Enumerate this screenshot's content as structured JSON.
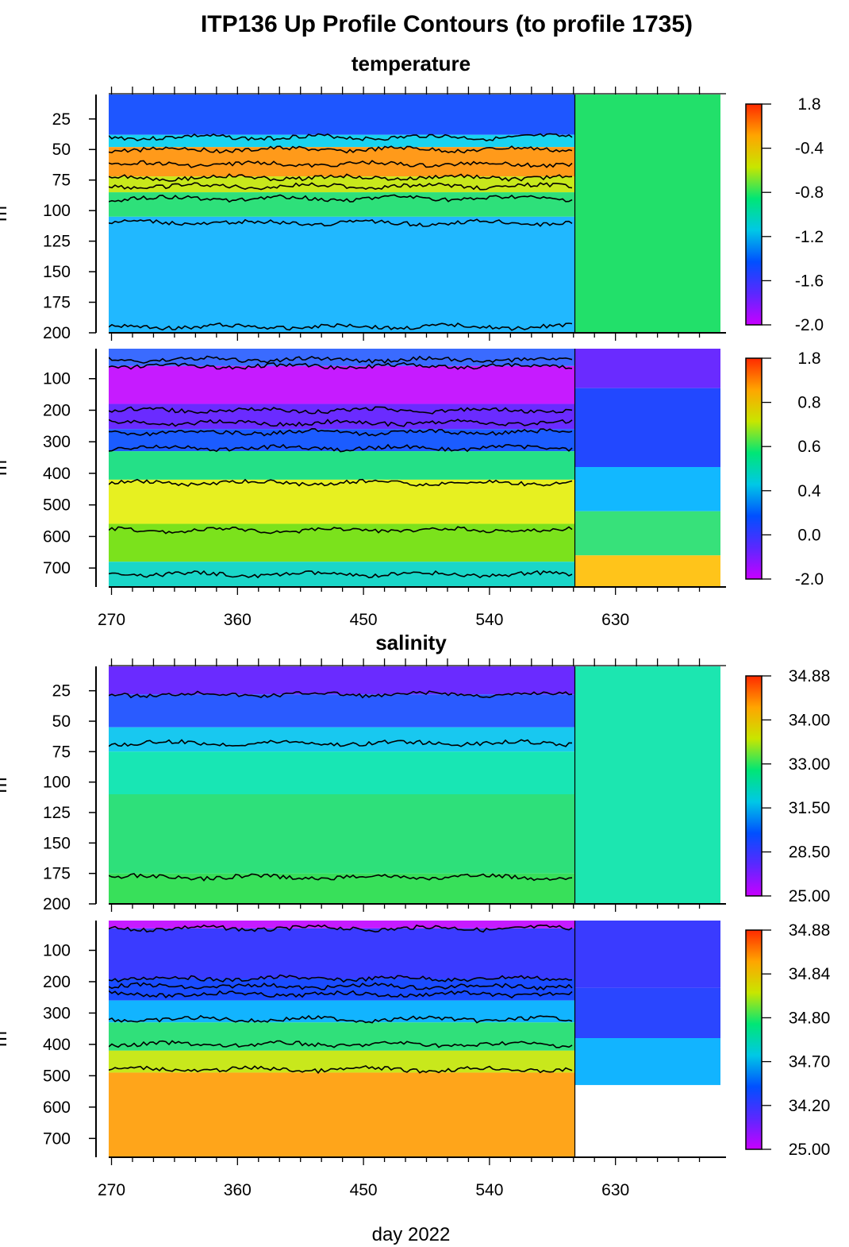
{
  "title": "ITP136 Up Profile Contours (to profile 1735)",
  "xlabel": "day 2022",
  "ylabel": "m",
  "chart_data": [
    {
      "type": "heatmap",
      "section": "temperature",
      "variable": "temperature",
      "panel": "upper",
      "x_ticks": [
        270,
        360,
        450,
        540,
        630
      ],
      "xlim": [
        268,
        705
      ],
      "y_ticks": [
        25,
        50,
        75,
        100,
        125,
        150,
        175,
        200
      ],
      "ylim": [
        200,
        5
      ],
      "ylabel": "m",
      "colorbar_labels": [
        "1.8",
        "-0.4",
        "-0.8",
        "-1.2",
        "-1.6",
        "-2.0"
      ],
      "colormap": [
        "#ff2a00",
        "#ffa500",
        "#c8e600",
        "#00e676",
        "#00c8e6",
        "#0050ff",
        "#5a28ff",
        "#c800ff"
      ],
      "data_end_day": 601,
      "layers": [
        {
          "from": 5,
          "to": 38,
          "color": "#1e56ff"
        },
        {
          "from": 38,
          "to": 48,
          "color": "#19d3f0"
        },
        {
          "from": 48,
          "to": 72,
          "color": "#ff9a1a"
        },
        {
          "from": 72,
          "to": 85,
          "color": "#c8e81c"
        },
        {
          "from": 85,
          "to": 105,
          "color": "#2ee07a"
        },
        {
          "from": 105,
          "to": 200,
          "color": "#21b8ff"
        }
      ],
      "after_color": "#22e06a",
      "contours": [
        40,
        50,
        62,
        73,
        80,
        90,
        110,
        195
      ]
    },
    {
      "type": "heatmap",
      "section": "temperature",
      "variable": "temperature",
      "panel": "lower",
      "x_ticks": [
        270,
        360,
        450,
        540,
        630
      ],
      "xlim": [
        268,
        705
      ],
      "y_ticks": [
        100,
        200,
        300,
        400,
        500,
        600,
        700
      ],
      "ylim": [
        760,
        5
      ],
      "ylabel": "m",
      "colorbar_labels": [
        "1.8",
        "0.8",
        "0.6",
        "0.4",
        "0.0",
        "-2.0"
      ],
      "colormap": [
        "#ff2a00",
        "#ffa500",
        "#c8e600",
        "#00e676",
        "#00c8e6",
        "#0050ff",
        "#5a28ff",
        "#c800ff"
      ],
      "data_end_day": 601,
      "layers": [
        {
          "from": 5,
          "to": 60,
          "color": "#3a6bff"
        },
        {
          "from": 60,
          "to": 180,
          "color": "#c61bff"
        },
        {
          "from": 180,
          "to": 260,
          "color": "#6a2bff"
        },
        {
          "from": 260,
          "to": 330,
          "color": "#1b5cff"
        },
        {
          "from": 330,
          "to": 420,
          "color": "#24e087"
        },
        {
          "from": 420,
          "to": 560,
          "color": "#e7f021"
        },
        {
          "from": 560,
          "to": 680,
          "color": "#7be21c"
        },
        {
          "from": 680,
          "to": 760,
          "color": "#1ad6c8"
        }
      ],
      "after_layers": [
        {
          "from": 5,
          "to": 130,
          "color": "#6a2bff"
        },
        {
          "from": 130,
          "to": 380,
          "color": "#2248ff"
        },
        {
          "from": 380,
          "to": 520,
          "color": "#12b8ff"
        },
        {
          "from": 520,
          "to": 660,
          "color": "#37e17a"
        },
        {
          "from": 660,
          "to": 760,
          "color": "#ffc41a"
        }
      ],
      "contours": [
        40,
        60,
        200,
        240,
        270,
        320,
        430,
        580,
        720
      ]
    },
    {
      "type": "heatmap",
      "section": "salinity",
      "variable": "salinity",
      "panel": "upper",
      "x_ticks": [
        270,
        360,
        450,
        540,
        630
      ],
      "xlim": [
        268,
        705
      ],
      "y_ticks": [
        25,
        50,
        75,
        100,
        125,
        150,
        175,
        200
      ],
      "ylim": [
        200,
        5
      ],
      "ylabel": "m",
      "colorbar_labels": [
        "34.88",
        "34.00",
        "33.00",
        "31.50",
        "28.50",
        "25.00"
      ],
      "colormap": [
        "#ff2a00",
        "#ffa500",
        "#c8e600",
        "#00e676",
        "#00c8e6",
        "#0050ff",
        "#5a28ff",
        "#c800ff"
      ],
      "data_end_day": 601,
      "layers": [
        {
          "from": 5,
          "to": 28,
          "color": "#6a2bff"
        },
        {
          "from": 28,
          "to": 55,
          "color": "#2a5bff"
        },
        {
          "from": 55,
          "to": 75,
          "color": "#18c8f0"
        },
        {
          "from": 75,
          "to": 110,
          "color": "#18e6b4"
        },
        {
          "from": 110,
          "to": 175,
          "color": "#2ee07a"
        },
        {
          "from": 175,
          "to": 200,
          "color": "#38e05a"
        }
      ],
      "after_color": "#1ce6b0",
      "contours": [
        28,
        68,
        178
      ]
    },
    {
      "type": "heatmap",
      "section": "salinity",
      "variable": "salinity",
      "panel": "lower",
      "x_ticks": [
        270,
        360,
        450,
        540,
        630
      ],
      "xlim": [
        268,
        705
      ],
      "y_ticks": [
        100,
        200,
        300,
        400,
        500,
        600,
        700
      ],
      "ylim": [
        760,
        5
      ],
      "ylabel": "m",
      "colorbar_labels": [
        "34.88",
        "34.84",
        "34.80",
        "34.70",
        "34.20",
        "25.00"
      ],
      "colormap": [
        "#ff2a00",
        "#ffa500",
        "#c8e600",
        "#00e676",
        "#00c8e6",
        "#0050ff",
        "#5a28ff",
        "#c800ff"
      ],
      "data_end_day": 601,
      "layers": [
        {
          "from": 5,
          "to": 30,
          "color": "#c61bff"
        },
        {
          "from": 30,
          "to": 190,
          "color": "#3a3bff"
        },
        {
          "from": 190,
          "to": 260,
          "color": "#1a4cff"
        },
        {
          "from": 260,
          "to": 330,
          "color": "#12b4ff"
        },
        {
          "from": 330,
          "to": 420,
          "color": "#30e07a"
        },
        {
          "from": 420,
          "to": 490,
          "color": "#c8e81c"
        },
        {
          "from": 490,
          "to": 760,
          "color": "#ffa51a"
        }
      ],
      "after_layers": [
        {
          "from": 5,
          "to": 220,
          "color": "#3a3bff"
        },
        {
          "from": 220,
          "to": 380,
          "color": "#2a46ff"
        },
        {
          "from": 380,
          "to": 530,
          "color": "#12b4ff"
        },
        {
          "from": 530,
          "to": 760,
          "color": "#ffffff"
        }
      ],
      "contours": [
        30,
        190,
        215,
        240,
        320,
        400,
        480
      ]
    }
  ],
  "section_titles": {
    "temperature": "temperature",
    "salinity": "salinity"
  }
}
